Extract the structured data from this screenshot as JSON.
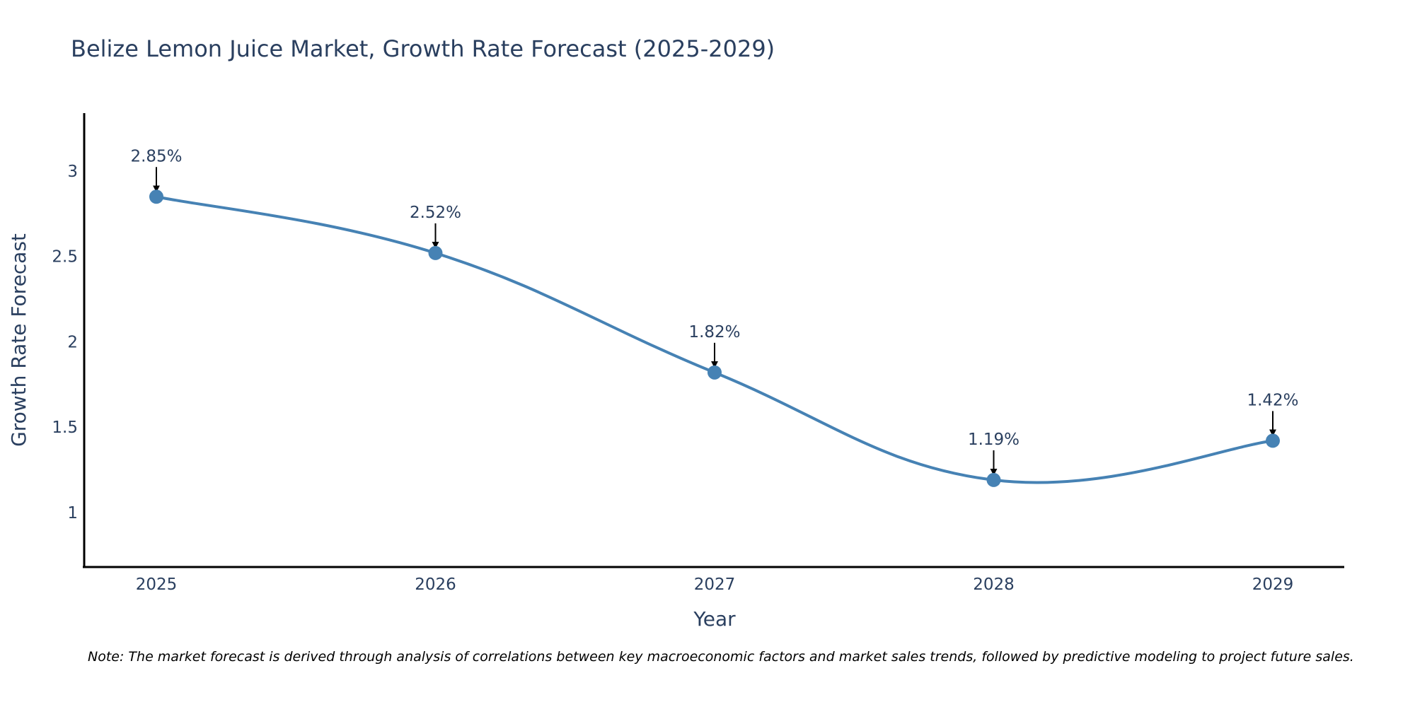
{
  "chart_data": {
    "type": "line",
    "title": "Belize Lemon Juice Market, Growth Rate Forecast (2025-2029)",
    "xlabel": "Year",
    "ylabel": "Growth Rate Forecast",
    "categories": [
      "2025",
      "2026",
      "2027",
      "2028",
      "2029"
    ],
    "values": [
      2.85,
      2.52,
      1.82,
      1.19,
      1.42
    ],
    "data_labels": [
      "2.85%",
      "2.52%",
      "1.82%",
      "1.19%",
      "1.42%"
    ],
    "ylim": [
      0.68,
      3.34
    ],
    "y_ticks": [
      "1",
      "1.5",
      "2",
      "2.5",
      "3"
    ],
    "y_tick_values": [
      1,
      1.5,
      2,
      2.5,
      3
    ],
    "line_color": "#4682b4",
    "marker_color": "#4682b4",
    "arrow_color": "#000000",
    "grid": false
  },
  "note": "Note: The market forecast is derived through analysis of correlations between key macroeconomic factors and market sales trends, followed by predictive modeling to project future sales."
}
